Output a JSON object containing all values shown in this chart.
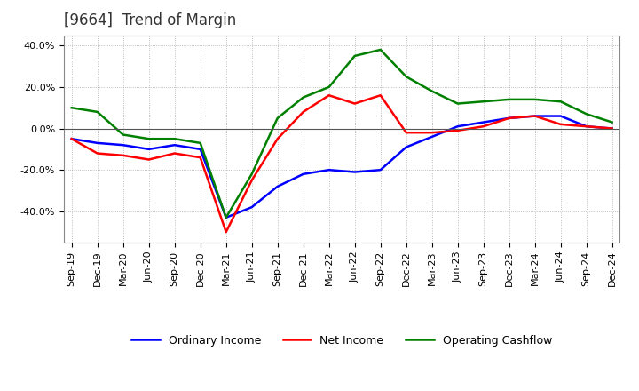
{
  "title": "[9664]  Trend of Margin",
  "x_labels": [
    "Sep-19",
    "Dec-19",
    "Mar-20",
    "Jun-20",
    "Sep-20",
    "Dec-20",
    "Mar-21",
    "Jun-21",
    "Sep-21",
    "Dec-21",
    "Mar-22",
    "Jun-22",
    "Sep-22",
    "Dec-22",
    "Mar-23",
    "Jun-23",
    "Sep-23",
    "Dec-23",
    "Mar-24",
    "Jun-24",
    "Sep-24",
    "Dec-24"
  ],
  "ordinary_income": [
    -5,
    -7,
    -8,
    -10,
    -8,
    -10,
    -43,
    -38,
    -28,
    -22,
    -20,
    -21,
    -20,
    -9,
    -4,
    1,
    3,
    5,
    6,
    6,
    1,
    0
  ],
  "net_income": [
    -5,
    -12,
    -13,
    -15,
    -12,
    -14,
    -50,
    -25,
    -5,
    8,
    16,
    12,
    16,
    -2,
    -2,
    -1,
    1,
    5,
    6,
    2,
    1,
    0
  ],
  "operating_cashflow": [
    10,
    8,
    -3,
    -5,
    -5,
    -7,
    -43,
    -22,
    5,
    15,
    20,
    35,
    38,
    25,
    18,
    12,
    13,
    14,
    14,
    13,
    7,
    3
  ],
  "ordinary_income_color": "#0000ff",
  "net_income_color": "#ff0000",
  "operating_cashflow_color": "#008000",
  "ylim": [
    -55,
    45
  ],
  "yticks": [
    -40,
    -20,
    0,
    20,
    40
  ],
  "ytick_labels": [
    "-40.0%",
    "-20.0%",
    "0.0%",
    "20.0%",
    "40.0%"
  ],
  "background_color": "#ffffff",
  "plot_bg_color": "#ffffff",
  "grid_color": "#aaaaaa",
  "line_width": 1.8,
  "title_fontsize": 12,
  "tick_fontsize": 8,
  "legend_labels": [
    "Ordinary Income",
    "Net Income",
    "Operating Cashflow"
  ]
}
